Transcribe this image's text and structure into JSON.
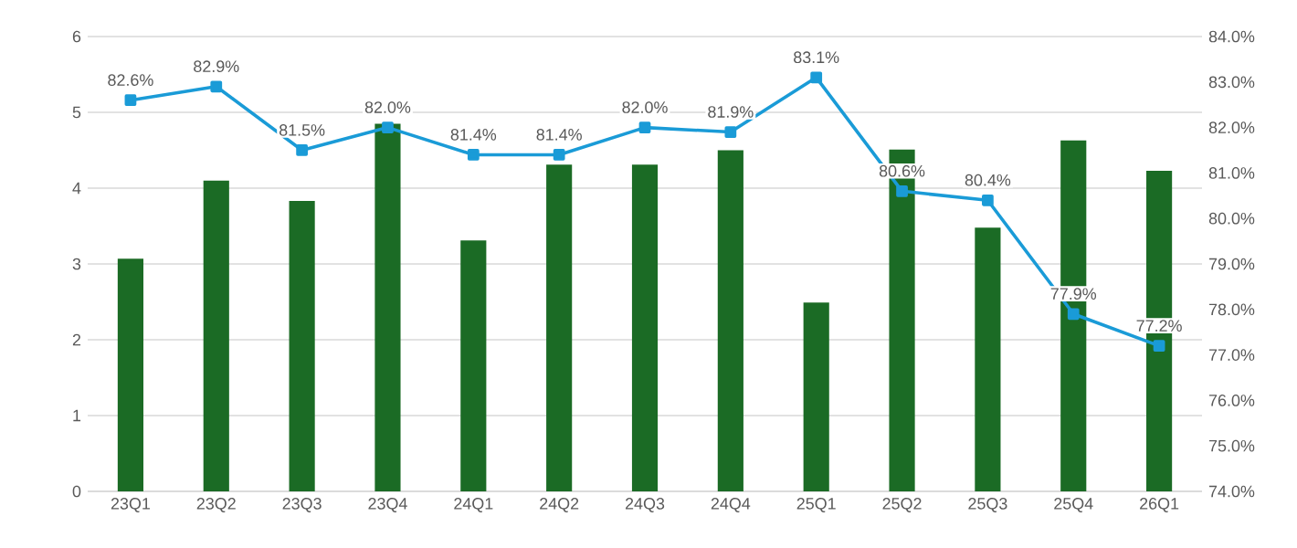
{
  "chart_data": {
    "type": "bar",
    "categories": [
      "23Q1",
      "23Q2",
      "23Q3",
      "23Q4",
      "24Q1",
      "24Q2",
      "24Q3",
      "24Q4",
      "25Q1",
      "25Q2",
      "25Q3",
      "25Q4",
      "26Q1"
    ],
    "series": [
      {
        "color": "#1b6b25",
        "values": [
          3.07,
          4.1,
          3.83,
          4.85,
          3.31,
          4.31,
          4.31,
          4.5,
          2.49,
          4.51,
          3.48,
          4.63,
          4.23
        ]
      },
      {
        "type": "line",
        "axis": "y2",
        "color": "#1a9bd7",
        "values": [
          82.6,
          82.9,
          81.5,
          82.0,
          81.4,
          81.4,
          82.0,
          81.9,
          83.1,
          80.6,
          80.4,
          77.9,
          77.2
        ],
        "value_labels": [
          "82.6%",
          "82.9%",
          "81.5%",
          "82.0%",
          "81.4%",
          "81.4%",
          "82.0%",
          "81.9%",
          "83.1%",
          "80.6%",
          "80.4%",
          "77.9%",
          "77.2%"
        ]
      }
    ],
    "ylim": [
      0,
      6
    ],
    "yticks": [
      0,
      1,
      2,
      3,
      4,
      5,
      6
    ],
    "y2lim": [
      74,
      84
    ],
    "y2ticks": [
      {
        "value": 74,
        "label": "74.0%"
      },
      {
        "value": 75,
        "label": "75.0%"
      },
      {
        "value": 76,
        "label": "76.0%"
      },
      {
        "value": 77,
        "label": "77.0%"
      },
      {
        "value": 78,
        "label": "78.0%"
      },
      {
        "value": 79,
        "label": "79.0%"
      },
      {
        "value": 80,
        "label": "80.0%"
      },
      {
        "value": 81,
        "label": "81.0%"
      },
      {
        "value": 82,
        "label": "82.0%"
      },
      {
        "value": 83,
        "label": "83.0%"
      },
      {
        "value": 84,
        "label": "84.0%"
      }
    ],
    "grid": "y",
    "marker": "square"
  }
}
